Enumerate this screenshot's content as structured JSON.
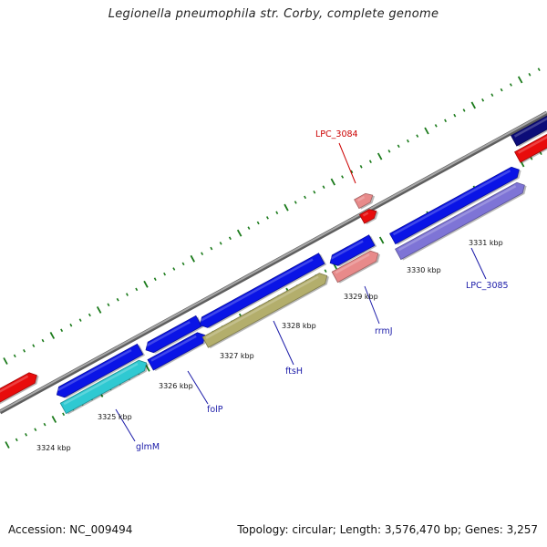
{
  "title": "Legionella pneumophila str. Corby, complete genome",
  "footer": {
    "accession": "Accession: NC_009494",
    "summary": "Topology: circular; Length: 3,576,470 bp; Genes: 3,257"
  },
  "ticks": [
    "3324 kbp",
    "3325 kbp",
    "3326 kbp",
    "3327 kbp",
    "3328 kbp",
    "3329 kbp",
    "3330 kbp",
    "3331 kbp"
  ],
  "labels": {
    "lpc3084": "LPC_3084",
    "glmM": "glmM",
    "folP": "folP",
    "ftsH": "ftsH",
    "rrmJ": "rrmJ",
    "lpc3085": "LPC_3085"
  },
  "colors": {
    "gene_blue": "#0a14e6",
    "rrna_red": "#e80c0c",
    "pseudo_pink": "#e88a8a",
    "cyan": "#2fc9d2",
    "olive": "#b3ae6c",
    "lavender": "#7e74d6",
    "navy": "#0c0c78",
    "backbone": "#8c8c8c",
    "tick_green": "#1a7a1a",
    "label_red": "#cc0000",
    "label_blue": "#1a1aa8"
  }
}
